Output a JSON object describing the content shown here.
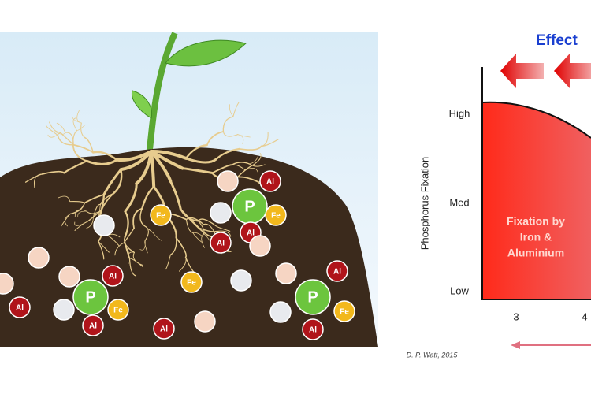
{
  "particle_labels": {
    "phosphate": "P",
    "aluminium": "Al",
    "iron": "Fe"
  },
  "graph": {
    "title": "Effect",
    "y_axis_label": "Phosphorus Fixation",
    "y_levels": [
      "High",
      "Med",
      "Low"
    ],
    "x_ticks": [
      "3",
      "4"
    ],
    "region_label": [
      "Fixation by",
      "Iron &",
      "Aluminium"
    ],
    "credit": "D. P. Watt, 2015"
  }
}
